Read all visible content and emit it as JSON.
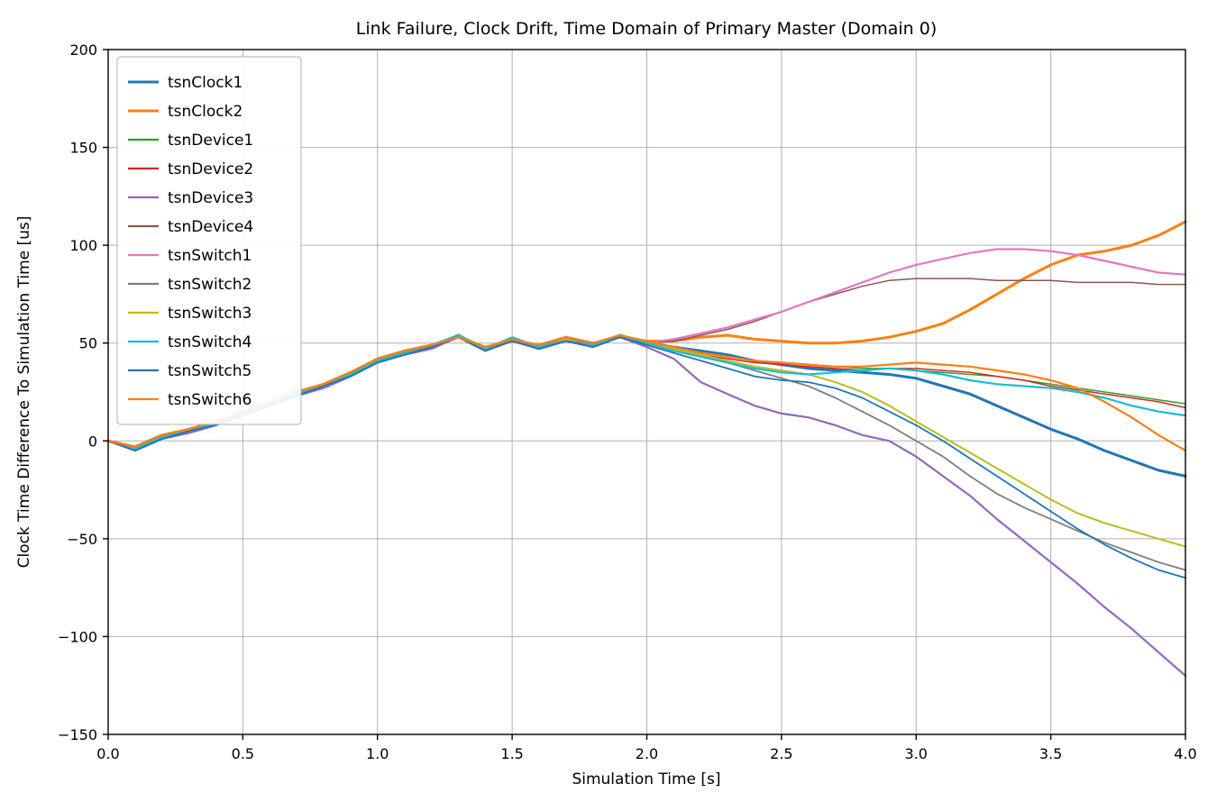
{
  "chart_data": {
    "type": "line",
    "title": "Link Failure, Clock Drift, Time Domain of Primary Master (Domain 0)",
    "xlabel": "Simulation Time [s]",
    "ylabel": "Clock Time Difference To Simulation Time [us]",
    "xlim": [
      0.0,
      4.0
    ],
    "ylim": [
      -150,
      200
    ],
    "grid": true,
    "legend_position": "upper left",
    "grid_color": "#b0b0b0",
    "axis_color": "#000000",
    "background_color": "#ffffff",
    "xticks": {
      "values": [
        0.0,
        0.5,
        1.0,
        1.5,
        2.0,
        2.5,
        3.0,
        3.5,
        4.0
      ],
      "labels": [
        "0.0",
        "0.5",
        "1.0",
        "1.5",
        "2.0",
        "2.5",
        "3.0",
        "3.5",
        "4.0"
      ]
    },
    "yticks": {
      "values": [
        -150,
        -100,
        -50,
        0,
        50,
        100,
        150,
        200
      ],
      "labels": [
        "−150",
        "−100",
        "−50",
        "0",
        "50",
        "100",
        "150",
        "200"
      ]
    },
    "x": [
      0.0,
      0.1,
      0.2,
      0.3,
      0.4,
      0.5,
      0.6,
      0.7,
      0.8,
      0.9,
      1.0,
      1.1,
      1.2,
      1.3,
      1.4,
      1.5,
      1.6,
      1.7,
      1.8,
      1.9,
      2.0,
      2.1,
      2.2,
      2.3,
      2.4,
      2.5,
      2.6,
      2.7,
      2.8,
      2.9,
      3.0,
      3.1,
      3.2,
      3.3,
      3.4,
      3.5,
      3.6,
      3.7,
      3.8,
      3.9,
      4.0
    ],
    "series": [
      {
        "name": "tsnClock1",
        "color": "#1f77b4",
        "width": 3,
        "values": [
          0,
          -4,
          2,
          5,
          9,
          14,
          19,
          24,
          28,
          34,
          41,
          45,
          48,
          54,
          47,
          52,
          48,
          52,
          49,
          54,
          50,
          48,
          46,
          44,
          41,
          39,
          37,
          36,
          35,
          34,
          32,
          28,
          24,
          18,
          12,
          6,
          1,
          -5,
          -10,
          -15,
          -18
        ]
      },
      {
        "name": "tsnClock2",
        "color": "#ff7f0e",
        "width": 3,
        "values": [
          0,
          -3,
          3,
          6,
          10,
          15,
          20,
          25,
          29,
          35,
          42,
          46,
          49,
          53,
          48,
          51,
          49,
          53,
          50,
          53,
          51,
          51,
          53,
          54,
          52,
          51,
          50,
          50,
          51,
          53,
          56,
          60,
          67,
          75,
          83,
          90,
          95,
          97,
          100,
          105,
          112
        ]
      },
      {
        "name": "tsnDevice1",
        "color": "#2ca02c",
        "width": 1.5,
        "values": [
          0,
          -4,
          2,
          5,
          9,
          14,
          19,
          24,
          28,
          34,
          42,
          45,
          48,
          54,
          47,
          52,
          48,
          52,
          49,
          54,
          50,
          47,
          45,
          43,
          41,
          40,
          39,
          38,
          37,
          37,
          36,
          35,
          34,
          33,
          31,
          29,
          27,
          25,
          23,
          21,
          19
        ]
      },
      {
        "name": "tsnDevice2",
        "color": "#d62728",
        "width": 1.5,
        "values": [
          0,
          -4,
          2,
          6,
          10,
          14,
          19,
          24,
          29,
          34,
          41,
          45,
          48,
          53,
          47,
          51,
          48,
          52,
          49,
          53,
          50,
          46,
          44,
          42,
          40,
          39,
          38,
          37,
          36,
          37,
          37,
          36,
          35,
          33,
          31,
          28,
          26,
          24,
          22,
          20,
          17
        ]
      },
      {
        "name": "tsnDevice3",
        "color": "#9467bd",
        "width": 2.2,
        "values": [
          0,
          -5,
          1,
          4,
          8,
          13,
          18,
          23,
          27,
          33,
          40,
          44,
          47,
          53,
          46,
          51,
          47,
          51,
          48,
          53,
          48,
          42,
          30,
          24,
          18,
          14,
          12,
          8,
          3,
          0,
          -8,
          -18,
          -28,
          -40,
          -51,
          -62,
          -73,
          -85,
          -96,
          -108,
          -120
        ]
      },
      {
        "name": "tsnDevice4",
        "color": "#8c564b",
        "width": 1.5,
        "values": [
          0,
          -3,
          3,
          6,
          10,
          15,
          20,
          25,
          29,
          35,
          41,
          45,
          49,
          53,
          48,
          52,
          49,
          52,
          50,
          53,
          50,
          51,
          54,
          57,
          61,
          66,
          71,
          75,
          79,
          82,
          83,
          83,
          83,
          82,
          82,
          82,
          81,
          81,
          81,
          80,
          80
        ]
      },
      {
        "name": "tsnSwitch1",
        "color": "#e377c2",
        "width": 2.2,
        "values": [
          0,
          -4,
          2,
          5,
          9,
          14,
          19,
          24,
          28,
          34,
          41,
          45,
          48,
          53,
          47,
          52,
          48,
          52,
          49,
          53,
          50,
          52,
          55,
          58,
          62,
          66,
          71,
          76,
          81,
          86,
          90,
          93,
          96,
          98,
          98,
          97,
          95,
          92,
          89,
          86,
          85
        ]
      },
      {
        "name": "tsnSwitch2",
        "color": "#7f7f7f",
        "width": 1.8,
        "values": [
          0,
          -4,
          2,
          5,
          9,
          14,
          19,
          24,
          28,
          34,
          41,
          45,
          48,
          53,
          47,
          51,
          48,
          52,
          49,
          53,
          50,
          47,
          44,
          40,
          36,
          32,
          28,
          22,
          15,
          8,
          0,
          -8,
          -18,
          -27,
          -34,
          -40,
          -46,
          -52,
          -57,
          -62,
          -66
        ]
      },
      {
        "name": "tsnSwitch3",
        "color": "#bcbd22",
        "width": 2,
        "values": [
          0,
          -4,
          2,
          6,
          9,
          14,
          20,
          25,
          29,
          35,
          42,
          46,
          49,
          54,
          48,
          52,
          49,
          52,
          50,
          54,
          50,
          47,
          44,
          41,
          38,
          36,
          34,
          30,
          25,
          18,
          10,
          2,
          -6,
          -14,
          -22,
          -30,
          -37,
          -42,
          -46,
          -50,
          -54
        ]
      },
      {
        "name": "tsnSwitch4",
        "color": "#17becf",
        "width": 2.2,
        "values": [
          0,
          -4,
          2,
          5,
          9,
          14,
          19,
          24,
          28,
          34,
          41,
          45,
          49,
          54,
          47,
          53,
          48,
          53,
          49,
          54,
          50,
          46,
          43,
          40,
          37,
          35,
          34,
          35,
          36,
          37,
          36,
          34,
          31,
          29,
          28,
          27,
          25,
          22,
          18,
          15,
          13
        ]
      },
      {
        "name": "tsnSwitch5",
        "color": "#1f77b4",
        "width": 1.8,
        "values": [
          0,
          -5,
          1,
          5,
          8,
          13,
          18,
          23,
          28,
          33,
          40,
          44,
          48,
          53,
          46,
          51,
          47,
          51,
          48,
          53,
          49,
          45,
          41,
          37,
          33,
          31,
          30,
          27,
          22,
          15,
          8,
          0,
          -9,
          -18,
          -27,
          -36,
          -45,
          -53,
          -60,
          -66,
          -70
        ]
      },
      {
        "name": "tsnSwitch6",
        "color": "#ff7f0e",
        "width": 2.2,
        "values": [
          0,
          -3,
          3,
          6,
          10,
          15,
          20,
          25,
          29,
          35,
          42,
          46,
          49,
          53,
          48,
          52,
          49,
          53,
          50,
          54,
          51,
          48,
          45,
          43,
          41,
          40,
          39,
          38,
          38,
          39,
          40,
          39,
          38,
          36,
          34,
          31,
          27,
          20,
          12,
          3,
          -5
        ]
      }
    ]
  }
}
